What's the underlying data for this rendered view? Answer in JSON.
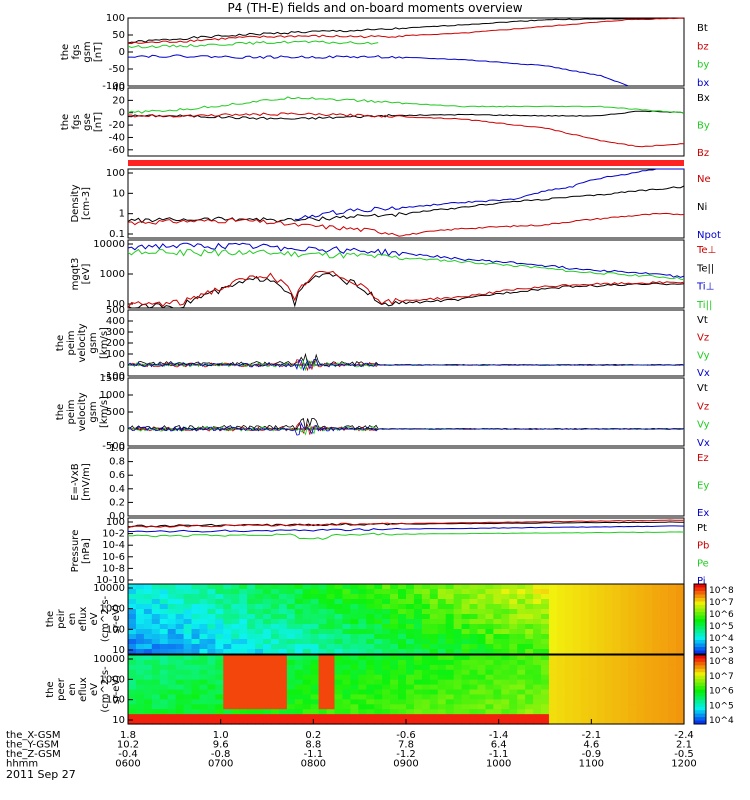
{
  "title": "P4 (TH-E) fields and on-board moments overview",
  "date_label": "2011 Sep 27",
  "colors": {
    "black": "#000000",
    "red": "#cc0000",
    "green": "#22cc22",
    "blue": "#0000cc",
    "bar": "#ff2222"
  },
  "chart_data": [
    {
      "type": "line",
      "panel": "fgs_gsm",
      "ylabel": [
        "the",
        "fgs",
        "gsm",
        "[nT]"
      ],
      "yticks": [
        "100",
        "50",
        "0",
        "-50",
        "-100"
      ],
      "ylim": [
        -100,
        100
      ],
      "legend": [
        {
          "label": "Bt",
          "color": "black"
        },
        {
          "label": "bz",
          "color": "red"
        },
        {
          "label": "by",
          "color": "green"
        },
        {
          "label": "bx",
          "color": "blue"
        }
      ],
      "series": [
        {
          "name": "Bt",
          "color": "black",
          "x": [
            0,
            0.1,
            0.2,
            0.3,
            0.45,
            0.6,
            0.75,
            0.9,
            1.0
          ],
          "y": [
            28,
            40,
            50,
            58,
            65,
            80,
            95,
            98,
            100
          ]
        },
        {
          "name": "bz",
          "color": "red",
          "x": [
            0,
            0.1,
            0.2,
            0.3,
            0.45,
            0.6,
            0.75,
            0.9,
            1.0
          ],
          "y": [
            25,
            32,
            42,
            47,
            45,
            55,
            75,
            95,
            100
          ]
        },
        {
          "name": "by",
          "color": "green",
          "x": [
            0,
            0.1,
            0.2,
            0.3,
            0.45
          ],
          "y": [
            15,
            18,
            25,
            30,
            25
          ]
        },
        {
          "name": "bx",
          "color": "blue",
          "x": [
            0,
            0.1,
            0.2,
            0.3,
            0.45,
            0.6,
            0.75,
            0.85,
            0.9
          ],
          "y": [
            -12,
            -12,
            -15,
            -15,
            -14,
            -22,
            -40,
            -70,
            -100
          ]
        }
      ]
    },
    {
      "type": "line",
      "panel": "fgs_gse",
      "ylabel": [
        "the",
        "fgs",
        "gse",
        "[nT]"
      ],
      "yticks": [
        "40",
        "20",
        "0",
        "-20",
        "-40",
        "-60"
      ],
      "ylim": [
        -70,
        40
      ],
      "legend": [
        {
          "label": "Bx",
          "color": "black"
        },
        {
          "label": "By",
          "color": "green"
        },
        {
          "label": "Bz",
          "color": "red"
        }
      ],
      "series": [
        {
          "name": "Bx",
          "color": "black",
          "x": [
            0,
            0.1,
            0.2,
            0.3,
            0.45,
            0.6,
            0.75,
            0.85,
            0.92,
            1.0
          ],
          "y": [
            -5,
            -5,
            -8,
            -10,
            -5,
            -3,
            -5,
            -5,
            3,
            0
          ]
        },
        {
          "name": "By",
          "color": "green",
          "x": [
            0,
            0.1,
            0.2,
            0.3,
            0.45,
            0.6,
            0.75,
            0.85,
            0.92,
            1.0
          ],
          "y": [
            0,
            5,
            15,
            25,
            18,
            10,
            10,
            10,
            5,
            0
          ]
        },
        {
          "name": "Bz",
          "color": "red",
          "x": [
            0,
            0.1,
            0.2,
            0.3,
            0.45,
            0.6,
            0.75,
            0.85,
            0.92,
            1.0
          ],
          "y": [
            -5,
            -5,
            -3,
            -2,
            -5,
            -10,
            -25,
            -45,
            -55,
            -50
          ]
        }
      ]
    },
    {
      "type": "line",
      "panel": "density",
      "ylabel": [
        "Density",
        "[cm-3]"
      ],
      "yticks": [
        "100",
        "10",
        "1",
        "0.1"
      ],
      "yscale": "log",
      "legend": [
        {
          "label": "Ne",
          "color": "red"
        },
        {
          "label": "Ni",
          "color": "black"
        },
        {
          "label": "Npot",
          "color": "blue"
        }
      ],
      "series": [
        {
          "name": "Ni",
          "color": "black",
          "x": [
            0,
            0.2,
            0.3,
            0.5,
            0.6,
            0.75,
            0.85,
            0.95,
            1.0
          ],
          "y": [
            0.5,
            0.6,
            0.5,
            1,
            2,
            5,
            8,
            15,
            20
          ]
        },
        {
          "name": "Ne",
          "color": "red",
          "x": [
            0,
            0.2,
            0.3,
            0.5,
            0.6,
            0.75,
            0.85,
            0.95,
            1.0
          ],
          "y": [
            0.4,
            0.5,
            0.3,
            0.1,
            0.2,
            0.3,
            0.6,
            1,
            1
          ]
        },
        {
          "name": "Npot",
          "color": "blue",
          "x": [
            0.3,
            0.4,
            0.5,
            0.7,
            0.8,
            0.9,
            1.0
          ],
          "y": [
            0.5,
            1.5,
            2,
            5,
            20,
            80,
            200
          ]
        }
      ]
    },
    {
      "type": "line",
      "panel": "temperature",
      "ylabel": [
        "mgqt3",
        "[eV]"
      ],
      "yticks": [
        "10000",
        "1000",
        "100"
      ],
      "yscale": "log",
      "legend": [
        {
          "label": "Te⊥",
          "color": "red"
        },
        {
          "label": "Te||",
          "color": "black"
        },
        {
          "label": "Ti⊥",
          "color": "blue"
        },
        {
          "label": "Ti||",
          "color": "green"
        }
      ],
      "series": [
        {
          "name": "Ti⊥",
          "color": "blue",
          "x": [
            0,
            0.2,
            0.4,
            0.6,
            0.8,
            1.0
          ],
          "y": [
            8000,
            8000,
            6000,
            3000,
            1500,
            800
          ]
        },
        {
          "name": "Ti||",
          "color": "green",
          "x": [
            0,
            0.2,
            0.4,
            0.6,
            0.8,
            1.0
          ],
          "y": [
            5000,
            5000,
            4000,
            2500,
            1200,
            700
          ]
        },
        {
          "name": "Te||",
          "color": "black",
          "x": [
            0,
            0.1,
            0.17,
            0.25,
            0.3,
            0.35,
            0.45,
            0.6,
            0.8,
            1.0
          ],
          "y": [
            80,
            100,
            300,
            800,
            100,
            1000,
            100,
            150,
            400,
            500
          ]
        },
        {
          "name": "Te⊥",
          "color": "red",
          "x": [
            0,
            0.1,
            0.17,
            0.25,
            0.3,
            0.35,
            0.45,
            0.6,
            0.8,
            1.0
          ],
          "y": [
            100,
            120,
            350,
            1000,
            120,
            1200,
            120,
            180,
            450,
            550
          ]
        }
      ]
    },
    {
      "type": "line",
      "panel": "peim_velocity_1",
      "ylabel": [
        "the",
        "peim",
        "velocity",
        "gsm",
        "[km/s]"
      ],
      "yticks": [
        "500",
        "400",
        "300",
        "200",
        "100",
        "0",
        "-100"
      ],
      "ylim": [
        -100,
        500
      ],
      "legend": [
        {
          "label": "Vt",
          "color": "black"
        },
        {
          "label": "Vz",
          "color": "red"
        },
        {
          "label": "Vy",
          "color": "green"
        },
        {
          "label": "Vx",
          "color": "blue"
        }
      ]
    },
    {
      "type": "line",
      "panel": "peim_velocity_2",
      "ylabel": [
        "the",
        "peim",
        "velocity",
        "gsm",
        "[km/s]"
      ],
      "yticks": [
        "1500",
        "1000",
        "500",
        "0",
        "-500"
      ],
      "ylim": [
        -500,
        1500
      ],
      "legend": [
        {
          "label": "Vt",
          "color": "black"
        },
        {
          "label": "Vz",
          "color": "red"
        },
        {
          "label": "Vy",
          "color": "green"
        },
        {
          "label": "Vx",
          "color": "blue"
        }
      ]
    },
    {
      "type": "line",
      "panel": "efield",
      "ylabel": [
        "E=-VxB",
        "[mV/m]"
      ],
      "yticks": [
        "1.0",
        "0.8",
        "0.6",
        "0.4",
        "0.2",
        "0.0"
      ],
      "ylim": [
        0,
        1
      ],
      "legend": [
        {
          "label": "Ez",
          "color": "red"
        },
        {
          "label": "Ey",
          "color": "green"
        },
        {
          "label": "Ex",
          "color": "blue"
        }
      ]
    },
    {
      "type": "line",
      "panel": "pressure",
      "ylabel": [
        "Pressure",
        "[nPa]"
      ],
      "yticks": [
        "10^0",
        "10^-2",
        "10^-4",
        "10^-6",
        "10^-8",
        "10^-10"
      ],
      "yscale": "log",
      "legend": [
        {
          "label": "Pt",
          "color": "black"
        },
        {
          "label": "Pb",
          "color": "red"
        },
        {
          "label": "Pe",
          "color": "green"
        },
        {
          "label": "Pi",
          "color": "blue"
        }
      ]
    },
    {
      "type": "heatmap",
      "panel": "peir_en_eflux",
      "ylabel": [
        "the",
        "peir",
        "en",
        "eflux",
        "eV",
        "(cm^2-s-",
        "sr-eV)"
      ],
      "yticks": [
        "10000",
        "1000",
        "100",
        "10"
      ],
      "colorbar_ticks": [
        "10^8",
        "10^7",
        "10^6",
        "10^5",
        "10^4",
        "10^3"
      ]
    },
    {
      "type": "heatmap",
      "panel": "peer_en_eflux",
      "ylabel": [
        "the",
        "peer",
        "en",
        "eflux",
        "eV",
        "(cm^2-s-",
        "sr-eV)"
      ],
      "yticks": [
        "10000",
        "1000",
        "100",
        "10"
      ],
      "colorbar_ticks": [
        "10^8",
        "10^7",
        "10^6",
        "10^5",
        "10^4"
      ]
    }
  ],
  "xaxis": {
    "rows": [
      {
        "label": "the_X-GSM",
        "values": [
          "1.8",
          "1.0",
          "0.2",
          "-0.6",
          "-1.4",
          "-2.1",
          "-2.4"
        ]
      },
      {
        "label": "the_Y-GSM",
        "values": [
          "10.2",
          "9.6",
          "8.8",
          "7.8",
          "6.4",
          "4.6",
          "2.1"
        ]
      },
      {
        "label": "the_Z-GSM",
        "values": [
          "-0.4",
          "-0.8",
          "-1.1",
          "-1.2",
          "-1.1",
          "-0.9",
          "-0.5"
        ]
      },
      {
        "label": "hhmm",
        "values": [
          "0600",
          "0700",
          "0800",
          "0900",
          "1000",
          "1100",
          "1200"
        ]
      }
    ]
  }
}
